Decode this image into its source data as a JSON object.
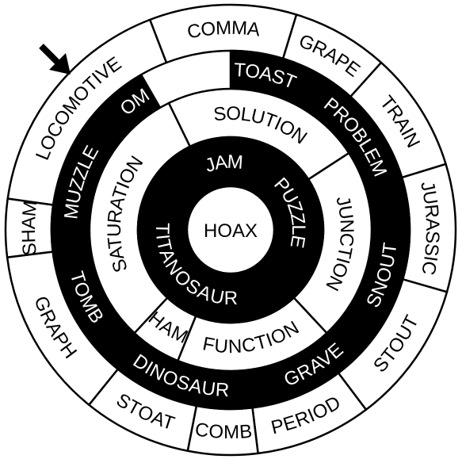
{
  "puzzle": {
    "center_word": "HOAX",
    "rings": [
      {
        "name": "ring-1",
        "segments": [
          {
            "word": "PUZZLE",
            "shaded": true
          },
          {
            "word": "TITANOSAUR",
            "shaded": true
          },
          {
            "word": "JAM",
            "shaded": true
          }
        ]
      },
      {
        "name": "ring-2",
        "segments": [
          {
            "word": "SOLUTION",
            "shaded": false
          },
          {
            "word": "JUNCTION",
            "shaded": false
          },
          {
            "word": "FUNCTION",
            "shaded": false
          },
          {
            "word": "HAM",
            "shaded": false
          },
          {
            "word": "SATURATION",
            "shaded": false
          }
        ]
      },
      {
        "name": "ring-3",
        "segments": [
          {
            "word": "TOAST",
            "shaded": true
          },
          {
            "word": "PROBLEM",
            "shaded": true
          },
          {
            "word": "SNOUT",
            "shaded": true
          },
          {
            "word": "GRAVE",
            "shaded": true
          },
          {
            "word": "DINOSAUR",
            "shaded": true
          },
          {
            "word": "TOMB",
            "shaded": true
          },
          {
            "word": "MUZZLE",
            "shaded": true
          },
          {
            "word": "COMA",
            "shaded": true
          }
        ]
      },
      {
        "name": "ring-4",
        "segments": [
          {
            "word": "GRAPE",
            "shaded": false
          },
          {
            "word": "TRAIN",
            "shaded": false
          },
          {
            "word": "JURASSIC",
            "shaded": false
          },
          {
            "word": "STOUT",
            "shaded": false
          },
          {
            "word": "PERIOD",
            "shaded": false
          },
          {
            "word": "COMB",
            "shaded": false
          },
          {
            "word": "STOAT",
            "shaded": false
          },
          {
            "word": "GRAPH",
            "shaded": false
          },
          {
            "word": "SHAM",
            "shaded": false
          },
          {
            "word": "LOCOMOTIVE",
            "shaded": false
          },
          {
            "word": "COMMA",
            "shaded": false
          }
        ]
      }
    ],
    "start_marker": "arrow-icon",
    "colors": {
      "ink": "#000000",
      "paper": "#ffffff"
    }
  }
}
